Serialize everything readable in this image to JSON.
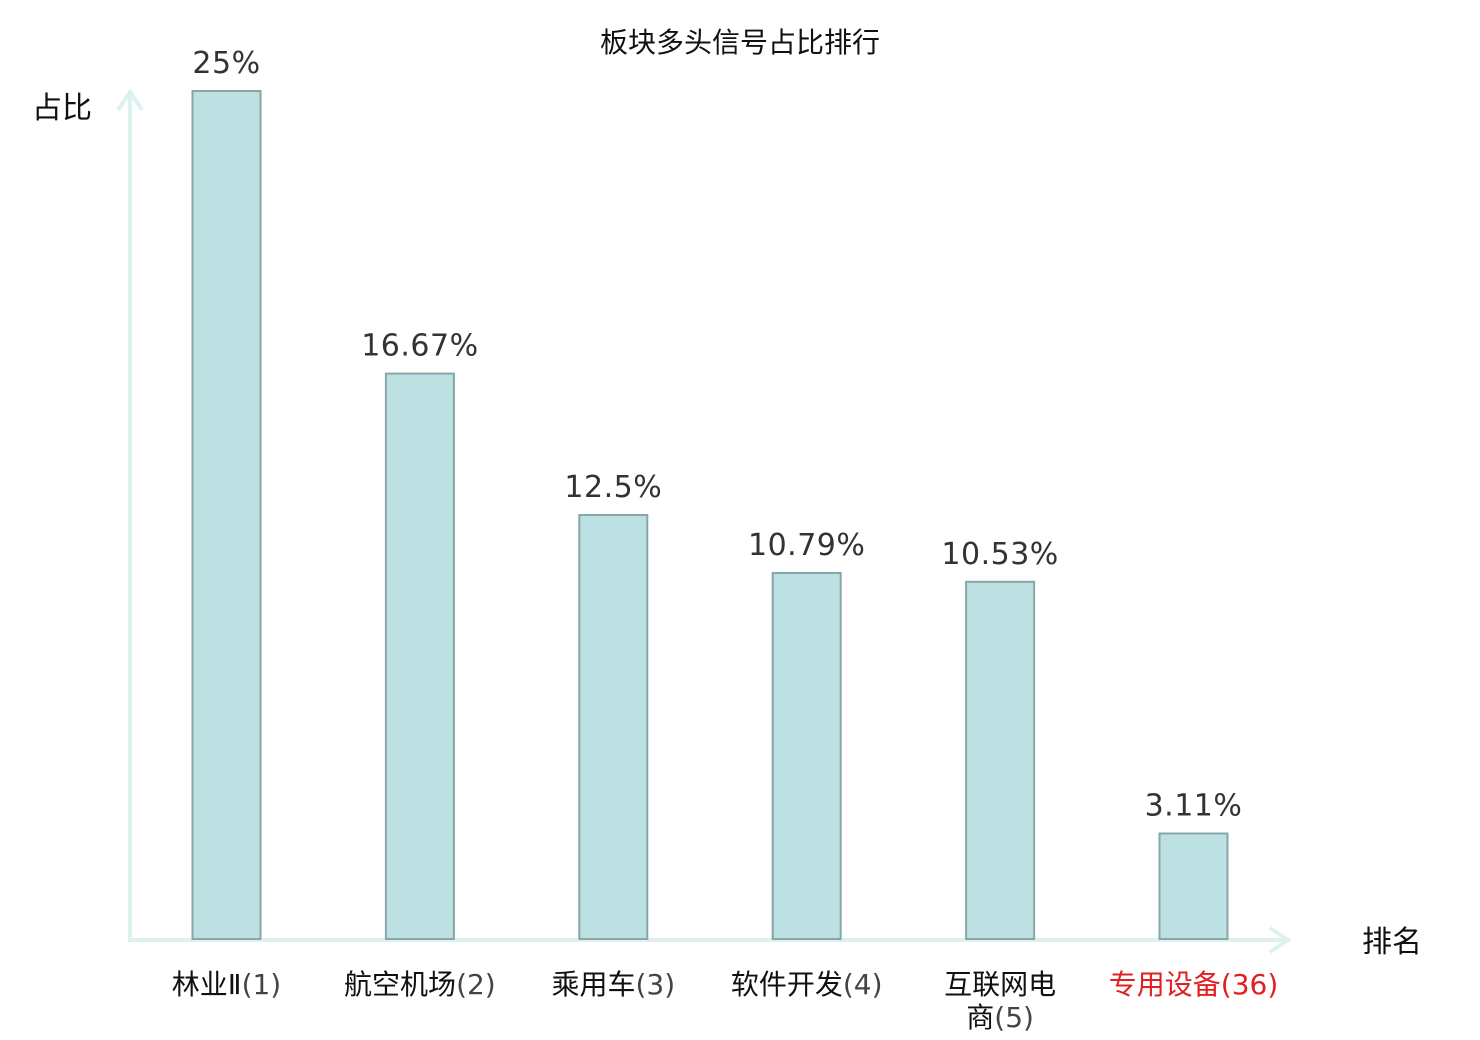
{
  "chart_data": {
    "type": "bar",
    "title": "板块多头信号占比排行",
    "xlabel": "排名",
    "ylabel": "占比",
    "ylim": [
      0,
      25
    ],
    "grid": false,
    "categories": [
      {
        "name": "林业Ⅱ",
        "rank": "(1)",
        "highlight": false
      },
      {
        "name": "航空机场",
        "rank": "(2)",
        "highlight": false
      },
      {
        "name": "乘用车",
        "rank": "(3)",
        "highlight": false
      },
      {
        "name": "软件开发",
        "rank": "(4)",
        "highlight": false
      },
      {
        "name": "互联网电商",
        "rank": "(5)",
        "highlight": false
      },
      {
        "name": "专用设备",
        "rank": "(36)",
        "highlight": true
      }
    ],
    "values": [
      25,
      16.67,
      12.5,
      10.79,
      10.53,
      3.11
    ],
    "value_labels": [
      "25%",
      "16.67%",
      "12.5%",
      "10.79%",
      "10.53%",
      "3.11%"
    ]
  },
  "colors": {
    "bar_fill": "#bde0e2",
    "bar_stroke": "#86a6a8",
    "axis": "#ddf1ef",
    "text": "#111111",
    "value_text": "#333333",
    "rank_text": "#444444",
    "highlight": "#e02020"
  }
}
